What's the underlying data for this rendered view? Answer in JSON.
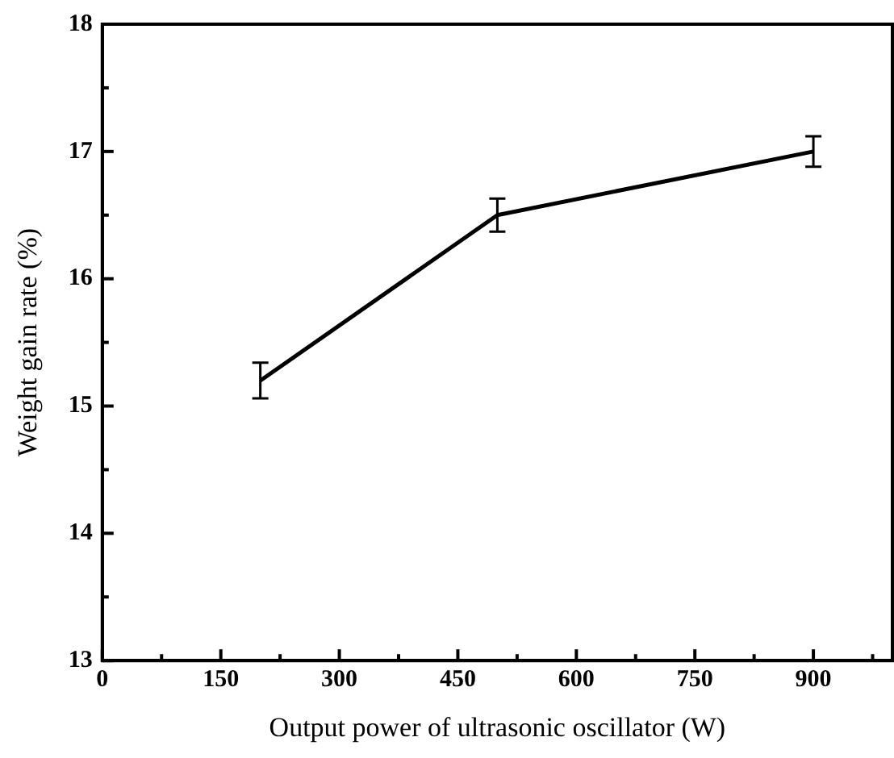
{
  "chart_data": {
    "type": "line",
    "xlabel": "Output power of ultrasonic oscillator (W)",
    "ylabel": "Weight gain rate (%)",
    "x": [
      200,
      500,
      900
    ],
    "series": [
      {
        "color": "#000000",
        "values": [
          15.2,
          16.5,
          17.0
        ],
        "errors": [
          0.14,
          0.13,
          0.12
        ]
      }
    ],
    "xlim": [
      0,
      1000
    ],
    "ylim": [
      13,
      18
    ],
    "xticks": [
      0,
      {
        "value": 75,
        "label": null
      },
      150,
      {
        "value": 225,
        "label": null
      },
      300,
      {
        "value": 375,
        "label": null
      },
      450,
      {
        "value": 525,
        "label": null
      },
      600,
      {
        "value": 675,
        "label": null
      },
      750,
      {
        "value": 825,
        "label": null
      },
      900,
      {
        "value": 975,
        "label": null
      }
    ],
    "yticks": [
      13,
      {
        "value": 13.5,
        "label": null
      },
      14,
      {
        "value": 14.5,
        "label": null
      },
      15,
      {
        "value": 15.5,
        "label": null
      },
      16,
      {
        "value": 16.5,
        "label": null
      },
      17,
      {
        "value": 17.5,
        "label": null
      },
      18
    ],
    "grid": false,
    "legend": false,
    "marker": "none",
    "line_style": "solid"
  }
}
